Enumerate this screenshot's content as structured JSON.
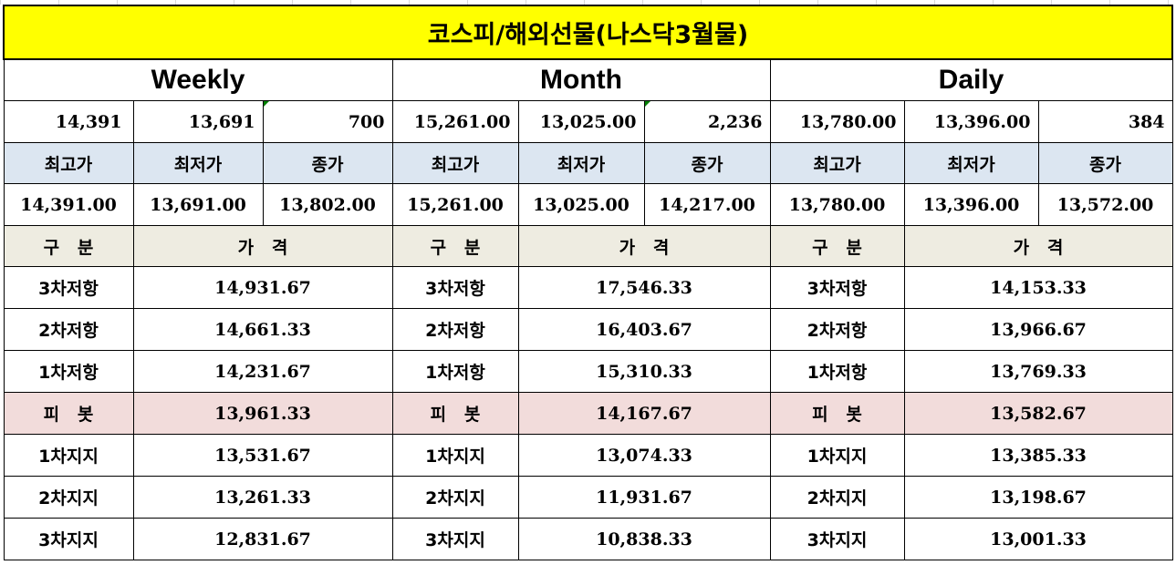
{
  "title": "코스피/해외선물(나스닥3월물)",
  "periods": [
    "Weekly",
    "Month",
    "Daily"
  ],
  "range_row": [
    [
      "14,391",
      "13,691",
      "700"
    ],
    [
      "15,261.00",
      "13,025.00",
      "2,236"
    ],
    [
      "13,780.00",
      "13,396.00",
      "384"
    ]
  ],
  "ohlc_headers": [
    "최고가",
    "최저가",
    "종가"
  ],
  "ohlc_values": [
    [
      "14,391.00",
      "13,691.00",
      "13,802.00"
    ],
    [
      "15,261.00",
      "13,025.00",
      "14,217.00"
    ],
    [
      "13,780.00",
      "13,396.00",
      "13,572.00"
    ]
  ],
  "section_headers": {
    "category": "구   분",
    "price": "가   격"
  },
  "levels": [
    {
      "label": "3차저항",
      "values": [
        "14,931.67",
        "17,546.33",
        "14,153.33"
      ]
    },
    {
      "label": "2차저항",
      "values": [
        "14,661.33",
        "16,403.67",
        "13,966.67"
      ]
    },
    {
      "label": "1차저항",
      "values": [
        "14,231.67",
        "15,310.33",
        "13,769.33"
      ]
    },
    {
      "label": "피   봇",
      "values": [
        "13,961.33",
        "14,167.67",
        "13,582.67"
      ],
      "pivot": true
    },
    {
      "label": "1차지지",
      "values": [
        "13,531.67",
        "13,074.33",
        "13,385.33"
      ]
    },
    {
      "label": "2차지지",
      "values": [
        "13,261.33",
        "11,931.67",
        "13,198.67"
      ]
    },
    {
      "label": "3차지지",
      "values": [
        "12,831.67",
        "10,838.33",
        "13,001.33"
      ]
    }
  ],
  "colors": {
    "title_bg": "#ffff00",
    "header_bg": "#dce6f1",
    "section_bg": "#eeece1",
    "pivot_bg": "#f2dcdb"
  }
}
